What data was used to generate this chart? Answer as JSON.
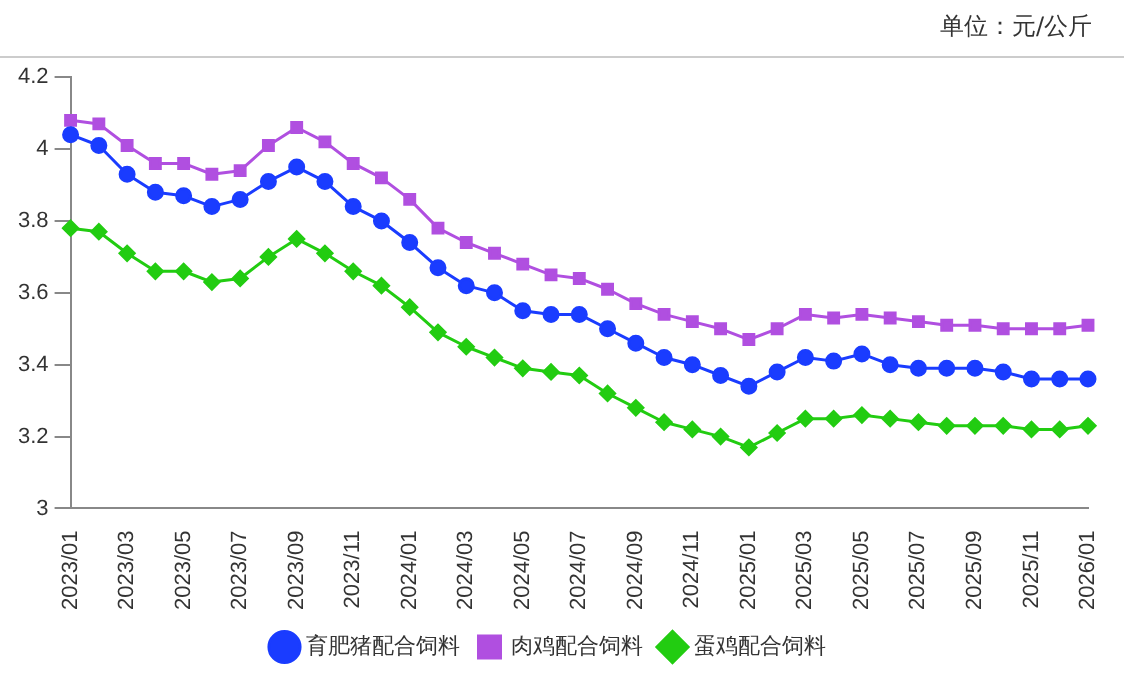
{
  "chart_data": {
    "type": "line",
    "annotations": [
      "单位：元/公斤"
    ],
    "categories": [
      "2023/01",
      null,
      "2023/03",
      null,
      "2023/05",
      null,
      "2023/07",
      null,
      "2023/09",
      null,
      "2023/11",
      null,
      "2024/01",
      null,
      "2024/03",
      null,
      "2024/05",
      null,
      "2024/07",
      null,
      "2024/09",
      null,
      "2024/11",
      null,
      "2025/01",
      null,
      "2025/03",
      null,
      "2025/05",
      null,
      "2025/07",
      null,
      "2025/09",
      null,
      "2025/11",
      null,
      "2026/01"
    ],
    "series": [
      {
        "name": "育肥猪配合饲料",
        "color": "#1a3cff",
        "marker": "circle",
        "values": [
          4.04,
          4.01,
          3.93,
          3.88,
          3.87,
          3.84,
          3.86,
          3.91,
          3.95,
          3.91,
          3.84,
          3.8,
          3.74,
          3.67,
          3.62,
          3.6,
          3.55,
          3.54,
          3.54,
          3.5,
          3.46,
          3.42,
          3.4,
          3.37,
          3.34,
          3.38,
          3.42,
          3.41,
          3.43,
          3.4,
          3.39,
          3.39,
          3.39,
          3.38,
          3.36,
          3.36,
          3.36
        ]
      },
      {
        "name": "肉鸡配合饲料",
        "color": "#b04fe0",
        "marker": "square",
        "values": [
          4.08,
          4.07,
          4.01,
          3.96,
          3.96,
          3.93,
          3.94,
          4.01,
          4.06,
          4.02,
          3.96,
          3.92,
          3.86,
          3.78,
          3.74,
          3.71,
          3.68,
          3.65,
          3.64,
          3.61,
          3.57,
          3.54,
          3.52,
          3.5,
          3.47,
          3.5,
          3.54,
          3.53,
          3.54,
          3.53,
          3.52,
          3.51,
          3.51,
          3.5,
          3.5,
          3.5,
          3.51
        ]
      },
      {
        "name": "蛋鸡配合饲料",
        "color": "#22cc11",
        "marker": "diamond",
        "values": [
          3.78,
          3.77,
          3.71,
          3.66,
          3.66,
          3.63,
          3.64,
          3.7,
          3.75,
          3.71,
          3.66,
          3.62,
          3.56,
          3.49,
          3.45,
          3.42,
          3.39,
          3.38,
          3.37,
          3.32,
          3.28,
          3.24,
          3.22,
          3.2,
          3.17,
          3.21,
          3.25,
          3.25,
          3.26,
          3.25,
          3.24,
          3.23,
          3.23,
          3.23,
          3.22,
          3.22,
          3.23
        ]
      }
    ],
    "ylim": [
      3,
      4.2
    ],
    "yticks": [
      3,
      3.2,
      3.4,
      3.6,
      3.8,
      4,
      4.2
    ],
    "grid": false,
    "legend": "bottom"
  }
}
